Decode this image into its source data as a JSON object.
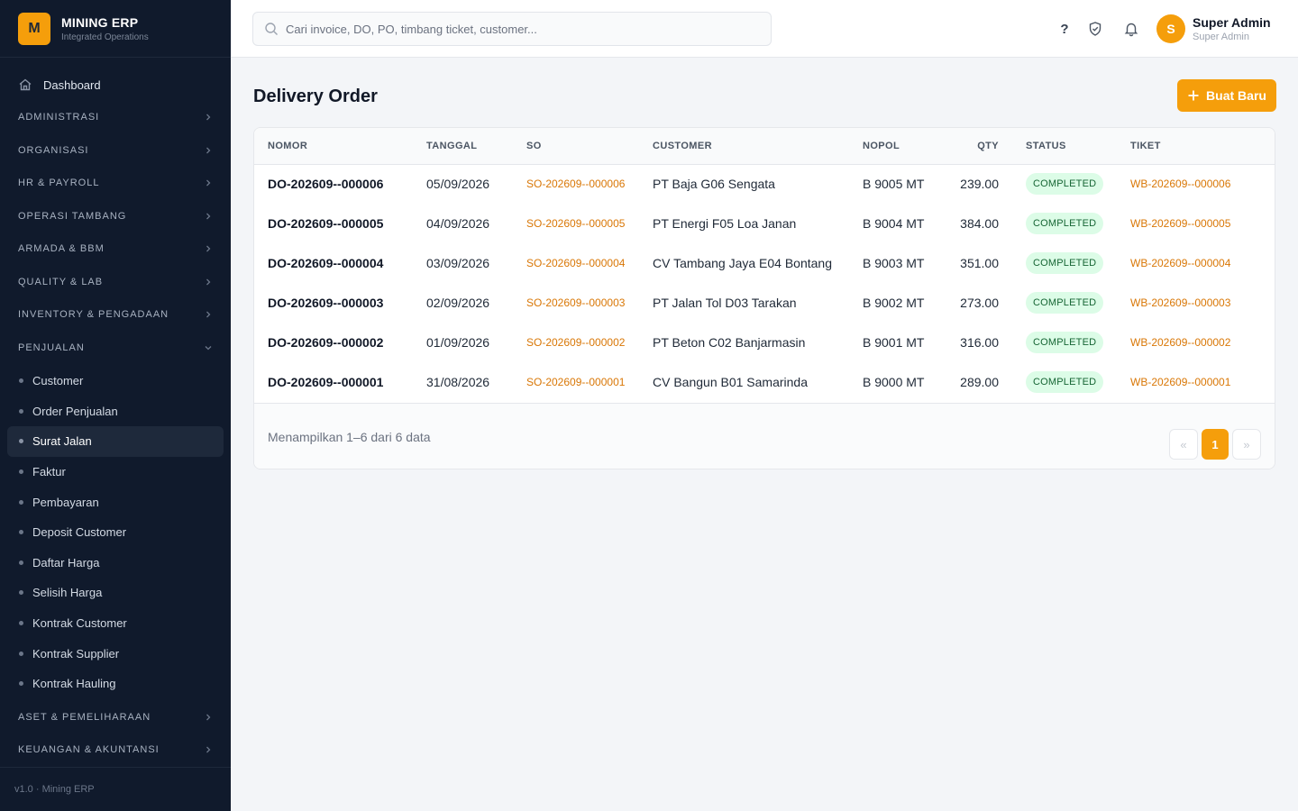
{
  "brand": {
    "logo_letter": "M",
    "name": "MINING ERP",
    "subtitle": "Integrated Operations"
  },
  "sidebar": {
    "dashboard": "Dashboard",
    "groups_before": [
      "ADMINISTRASI",
      "ORGANISASI",
      "HR & PAYROLL",
      "OPERASI TAMBANG",
      "ARMADA & BBM",
      "QUALITY & LAB",
      "INVENTORY & PENGADAAN"
    ],
    "open_group": "PENJUALAN",
    "sub_items": [
      "Customer",
      "Order Penjualan",
      "Surat Jalan",
      "Faktur",
      "Pembayaran",
      "Deposit Customer",
      "Daftar Harga",
      "Selisih Harga",
      "Kontrak Customer",
      "Kontrak Supplier",
      "Kontrak Hauling"
    ],
    "active_sub": "Surat Jalan",
    "groups_after": [
      "ASET & PEMELIHARAAN",
      "KEUANGAN & AKUNTANSI"
    ],
    "footer": "v1.0 · Mining ERP"
  },
  "topbar": {
    "search_placeholder": "Cari invoice, DO, PO, timbang ticket, customer...",
    "help_glyph": "?",
    "user": {
      "initial": "S",
      "name": "Super Admin",
      "role": "Super Admin"
    }
  },
  "page": {
    "title": "Delivery Order",
    "new_button": "Buat Baru"
  },
  "table": {
    "columns": [
      "NOMOR",
      "TANGGAL",
      "SO",
      "CUSTOMER",
      "NOPOL",
      "QTY",
      "STATUS",
      "TIKET"
    ],
    "rows": [
      {
        "nomor": "DO-202609--000006",
        "tanggal": "05/09/2026",
        "so": "SO-202609--000006",
        "customer": "PT Baja G06 Sengata",
        "nopol": "B 9005 MT",
        "qty": "239.00",
        "status": "COMPLETED",
        "tiket": "WB-202609--000006"
      },
      {
        "nomor": "DO-202609--000005",
        "tanggal": "04/09/2026",
        "so": "SO-202609--000005",
        "customer": "PT Energi F05 Loa Janan",
        "nopol": "B 9004 MT",
        "qty": "384.00",
        "status": "COMPLETED",
        "tiket": "WB-202609--000005"
      },
      {
        "nomor": "DO-202609--000004",
        "tanggal": "03/09/2026",
        "so": "SO-202609--000004",
        "customer": "CV Tambang Jaya E04 Bontang",
        "nopol": "B 9003 MT",
        "qty": "351.00",
        "status": "COMPLETED",
        "tiket": "WB-202609--000004"
      },
      {
        "nomor": "DO-202609--000003",
        "tanggal": "02/09/2026",
        "so": "SO-202609--000003",
        "customer": "PT Jalan Tol D03 Tarakan",
        "nopol": "B 9002 MT",
        "qty": "273.00",
        "status": "COMPLETED",
        "tiket": "WB-202609--000003"
      },
      {
        "nomor": "DO-202609--000002",
        "tanggal": "01/09/2026",
        "so": "SO-202609--000002",
        "customer": "PT Beton C02 Banjarmasin",
        "nopol": "B 9001 MT",
        "qty": "316.00",
        "status": "COMPLETED",
        "tiket": "WB-202609--000002"
      },
      {
        "nomor": "DO-202609--000001",
        "tanggal": "31/08/2026",
        "so": "SO-202609--000001",
        "customer": "CV Bangun B01 Samarinda",
        "nopol": "B 9000 MT",
        "qty": "289.00",
        "status": "COMPLETED",
        "tiket": "WB-202609--000001"
      }
    ]
  },
  "footer": {
    "info": "Menampilkan 1–6 dari 6 data",
    "prev": "«",
    "current_page": "1",
    "next": "»"
  },
  "colors": {
    "accent": "#f59e0b",
    "sidebar_bg": "#101a2c",
    "link": "#d97706",
    "badge_bg": "#dcfce7",
    "badge_text": "#166534"
  }
}
